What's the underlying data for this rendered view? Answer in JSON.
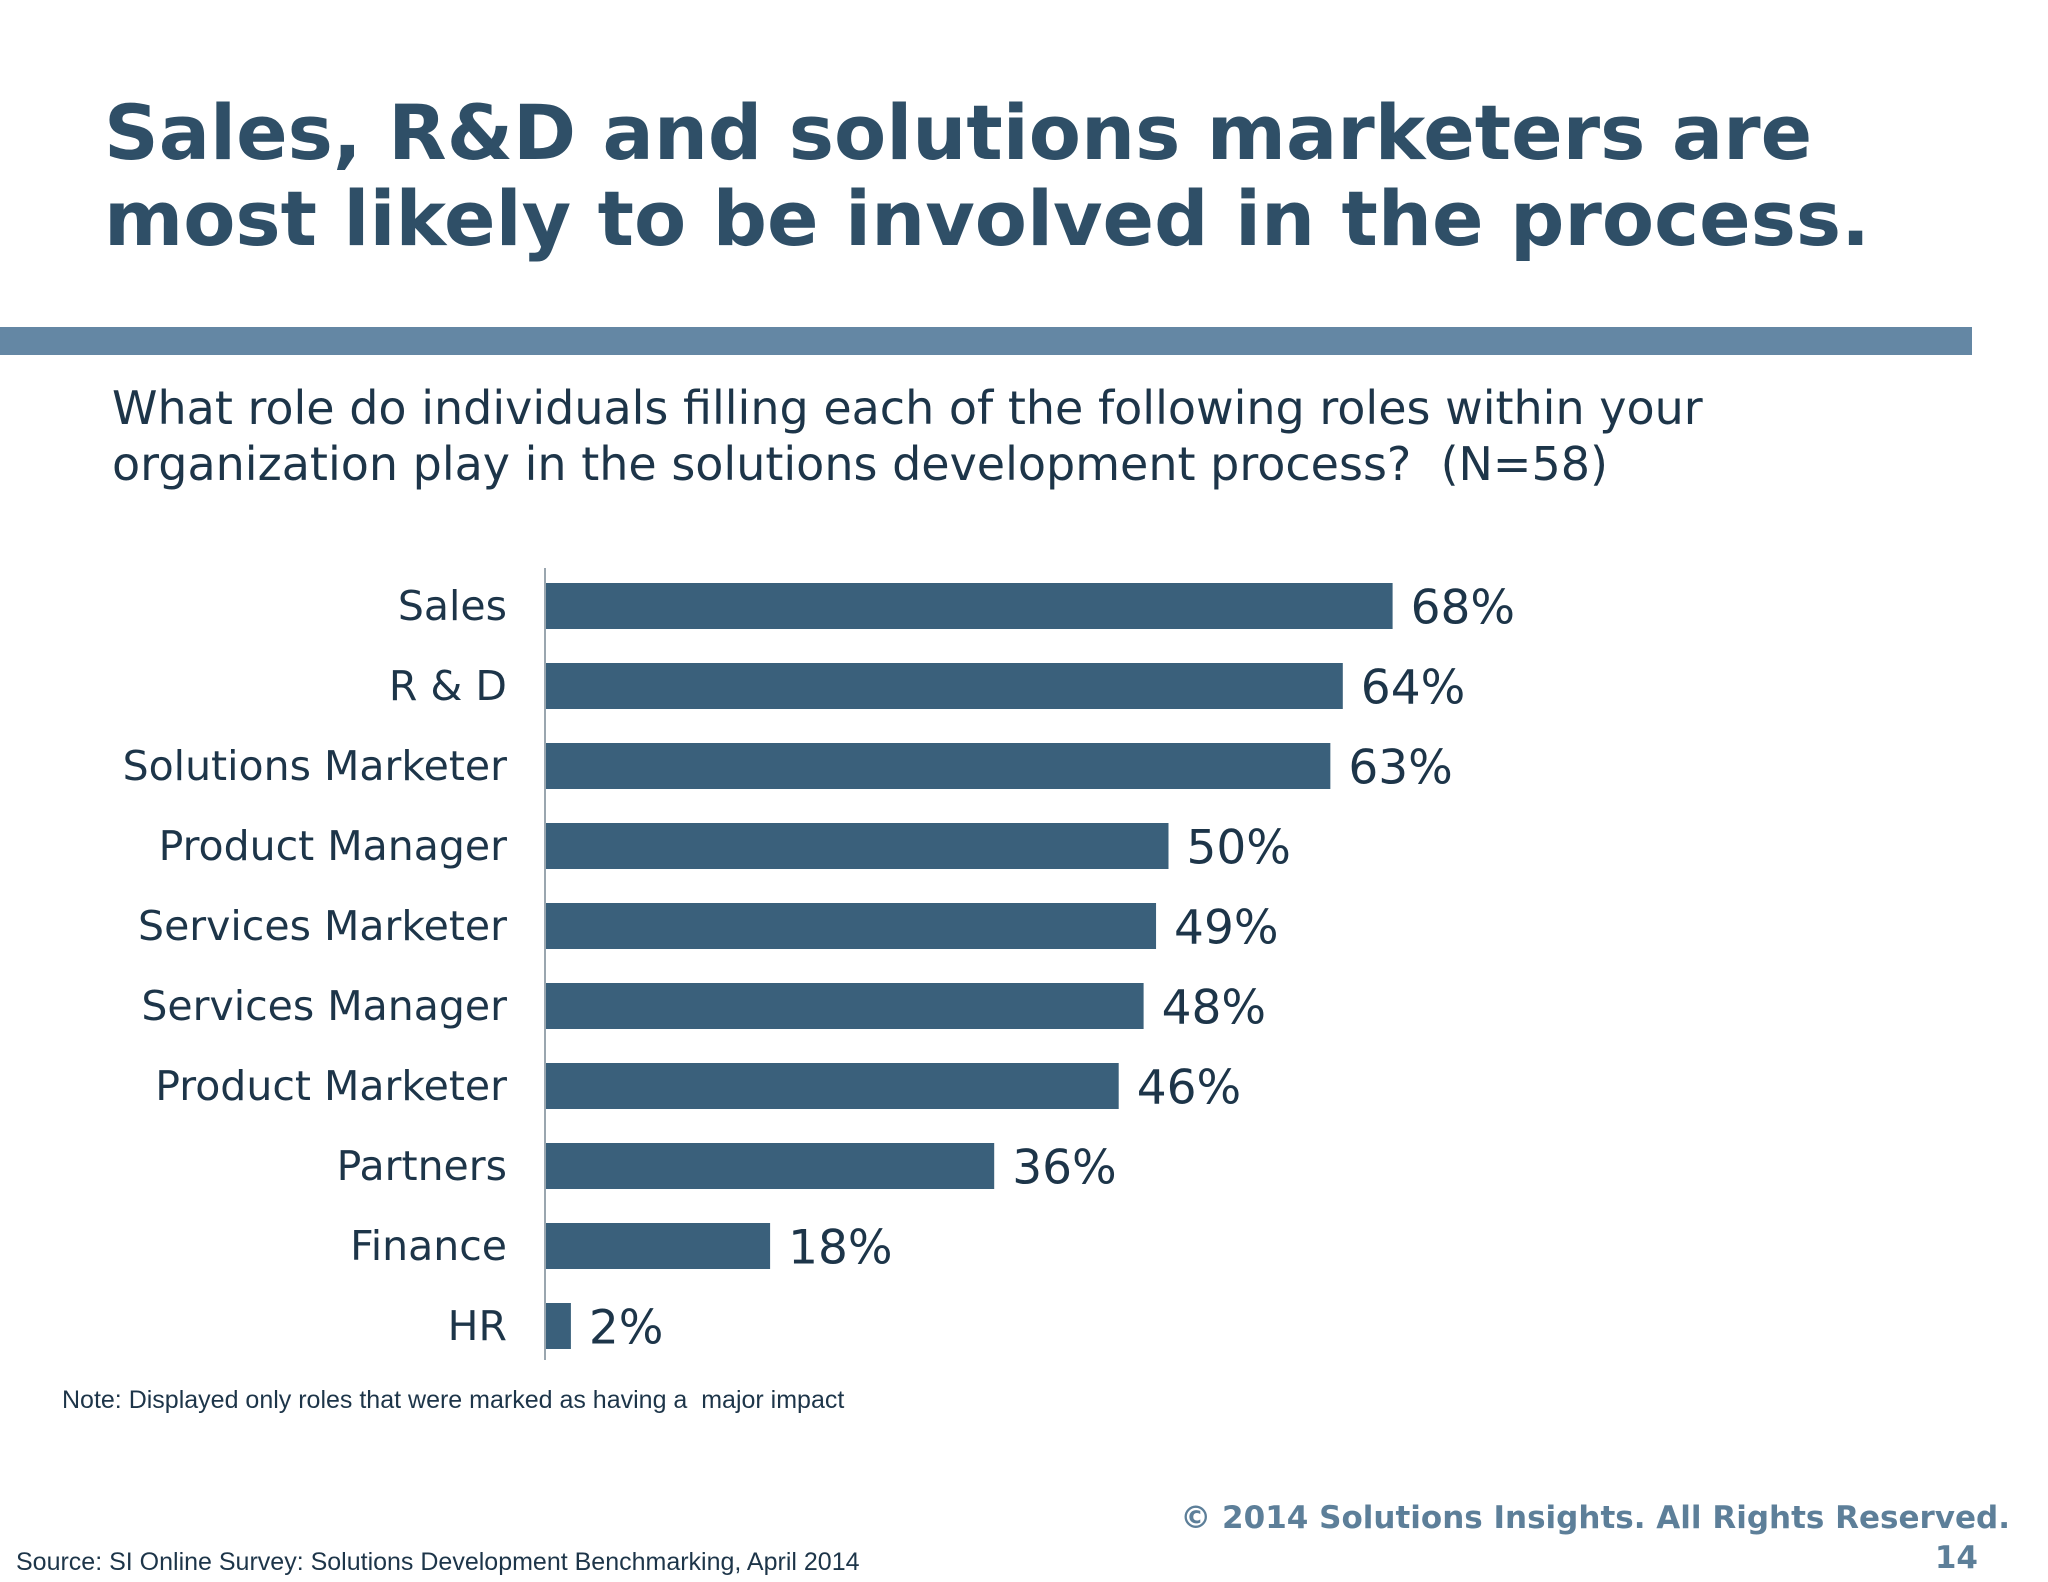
{
  "slide": {
    "title_lines": [
      "Sales, R&D and solutions marketers are",
      "most likely to be involved in the process."
    ],
    "question_lines": [
      "What role do individuals filling each of the following roles within your",
      "organization play in the solutions development process?  (N=58)"
    ],
    "note": "Note: Displayed only roles that were marked as having a  major impact",
    "source": "Source: SI Online Survey: Solutions Development Benchmarking, April 2014",
    "copyright": "© 2014 Solutions Insights. All Rights Reserved.",
    "page_number": "14",
    "colors": {
      "title": "#2f4f67",
      "rule_bar": "#6487a4",
      "bar": "#3a607b",
      "text": "#1d3549"
    }
  },
  "chart_data": {
    "type": "bar",
    "orientation": "horizontal",
    "categories": [
      "Sales",
      "R & D",
      "Solutions Marketer",
      "Product Manager",
      "Services Marketer",
      "Services Manager",
      "Product Marketer",
      "Partners",
      "Finance",
      "HR"
    ],
    "values": [
      68,
      64,
      63,
      50,
      49,
      48,
      46,
      36,
      18,
      2
    ],
    "value_labels": [
      "68%",
      "64%",
      "63%",
      "50%",
      "49%",
      "48%",
      "46%",
      "36%",
      "18%",
      "2%"
    ],
    "unit": "%",
    "xlim": [
      0,
      100
    ],
    "grid": false,
    "legend": "none",
    "bar_color": "#3a607b"
  }
}
